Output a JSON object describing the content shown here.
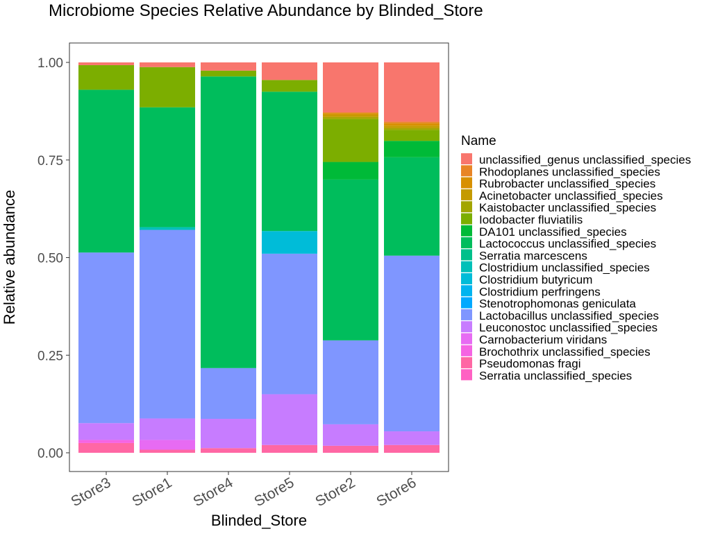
{
  "chart_data": {
    "type": "bar",
    "stacked": true,
    "title": "Microbiome Species Relative Abundance by Blinded_Store",
    "xlabel": "Blinded_Store",
    "ylabel": "Relative abundance",
    "ylim": [
      0,
      1
    ],
    "yticks": [
      "0.00",
      "0.25",
      "0.50",
      "0.75",
      "1.00"
    ],
    "grid": false,
    "legend_title": "Name",
    "legend_position": "right",
    "categories": [
      "Store3",
      "Store1",
      "Store4",
      "Store5",
      "Store2",
      "Store6"
    ],
    "series": [
      {
        "name": "Serratia unclassified_species",
        "color": "#FF61C3",
        "values": [
          0.0,
          0.0,
          0.0,
          0.0,
          0.0,
          0.0
        ]
      },
      {
        "name": "Pseudomonas fragi",
        "color": "#FF67A4",
        "values": [
          0.025,
          0.008,
          0.012,
          0.02,
          0.018,
          0.02
        ]
      },
      {
        "name": "Brochothrix unclassified_species",
        "color": "#F564E3",
        "values": [
          0.008,
          0.0,
          0.0,
          0.0,
          0.0,
          0.0
        ]
      },
      {
        "name": "Carnobacterium viridans",
        "color": "#E76BF3",
        "values": [
          0.0,
          0.025,
          0.0,
          0.0,
          0.0,
          0.0
        ]
      },
      {
        "name": "Leuconostoc unclassified_species",
        "color": "#C77CFF",
        "values": [
          0.043,
          0.055,
          0.075,
          0.13,
          0.055,
          0.035
        ]
      },
      {
        "name": "Lactobacillus unclassified_species",
        "color": "#7F96FF",
        "values": [
          0.437,
          0.483,
          0.13,
          0.36,
          0.215,
          0.45
        ]
      },
      {
        "name": "Stenotrophomonas geniculata",
        "color": "#00A9FF",
        "values": [
          0.0,
          0.0,
          0.0,
          0.0,
          0.0,
          0.0
        ]
      },
      {
        "name": "Clostridium perfringens",
        "color": "#00B4EF",
        "values": [
          0.0,
          0.0,
          0.0,
          0.0,
          0.0,
          0.0
        ]
      },
      {
        "name": "Clostridium butyricum",
        "color": "#00BCD8",
        "values": [
          0.0,
          0.0,
          0.0,
          0.058,
          0.0,
          0.0
        ]
      },
      {
        "name": "Clostridium unclassified_species",
        "color": "#00C0B8",
        "values": [
          0.0,
          0.007,
          0.0,
          0.0,
          0.0,
          0.0
        ]
      },
      {
        "name": "Serratia marcescens",
        "color": "#00C08B",
        "values": [
          0.0,
          0.0,
          0.0,
          0.0,
          0.0,
          0.0
        ]
      },
      {
        "name": "Lactococcus unclassified_species",
        "color": "#00BD5C",
        "values": [
          0.417,
          0.307,
          0.747,
          0.357,
          0.412,
          0.252
        ]
      },
      {
        "name": "DA101 unclassified_species",
        "color": "#00BA38",
        "values": [
          0.0,
          0.0,
          0.0,
          0.0,
          0.045,
          0.042
        ]
      },
      {
        "name": "Iodobacter fluviatilis",
        "color": "#7CAE00",
        "values": [
          0.063,
          0.103,
          0.015,
          0.03,
          0.11,
          0.028
        ]
      },
      {
        "name": "Kaistobacter unclassified_species",
        "color": "#A3A500",
        "values": [
          0.0,
          0.0,
          0.0,
          0.0,
          0.005,
          0.005
        ]
      },
      {
        "name": "Acinetobacter unclassified_species",
        "color": "#C49A00",
        "values": [
          0.0,
          0.0,
          0.0,
          0.0,
          0.006,
          0.006
        ]
      },
      {
        "name": "Rubrobacter unclassified_species",
        "color": "#D89000",
        "values": [
          0.0,
          0.0,
          0.0,
          0.0,
          0.004,
          0.006
        ]
      },
      {
        "name": "Rhodoplanes unclassified_species",
        "color": "#E88526",
        "values": [
          0.0,
          0.0,
          0.0,
          0.0,
          0.002,
          0.004
        ]
      },
      {
        "name": "unclassified_genus unclassified_species",
        "color": "#F8766D",
        "values": [
          0.007,
          0.012,
          0.021,
          0.045,
          0.128,
          0.152
        ]
      }
    ]
  }
}
